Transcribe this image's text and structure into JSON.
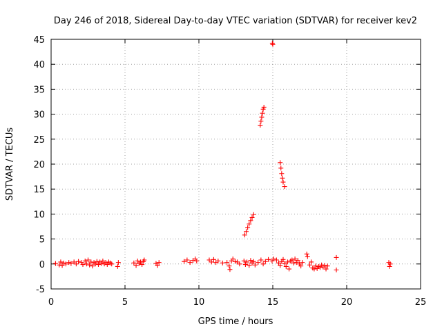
{
  "chart_data": {
    "type": "scatter",
    "title": "Day 246 of 2018, Sidereal Day-to-day VTEC variation (SDTVAR) for receiver kev2",
    "xlabel": "GPS time / hours",
    "ylabel": "SDTVAR / TECUs",
    "xlim": [
      0,
      25
    ],
    "ylim": [
      -5,
      45
    ],
    "xticks": [
      0,
      5,
      10,
      15,
      20,
      25
    ],
    "yticks": [
      -5,
      0,
      5,
      10,
      15,
      20,
      25,
      30,
      35,
      40,
      45
    ],
    "grid": true,
    "marker": "plus",
    "color": "#ff0000",
    "series": [
      {
        "name": "SDTVAR",
        "points": [
          [
            0.3,
            0.1
          ],
          [
            0.55,
            -0.2
          ],
          [
            0.65,
            0.4
          ],
          [
            0.75,
            -0.3
          ],
          [
            0.85,
            0.2
          ],
          [
            1.0,
            0.0
          ],
          [
            1.2,
            0.3
          ],
          [
            1.35,
            0.1
          ],
          [
            1.55,
            0.4
          ],
          [
            1.7,
            0.0
          ],
          [
            1.85,
            0.5
          ],
          [
            2.05,
            0.3
          ],
          [
            2.15,
            -0.1
          ],
          [
            2.3,
            0.6
          ],
          [
            2.4,
            0.0
          ],
          [
            2.5,
            0.8
          ],
          [
            2.6,
            -0.2
          ],
          [
            2.7,
            0.4
          ],
          [
            2.8,
            -0.4
          ],
          [
            2.9,
            0.3
          ],
          [
            3.0,
            0.0
          ],
          [
            3.1,
            0.5
          ],
          [
            3.2,
            -0.1
          ],
          [
            3.3,
            0.4
          ],
          [
            3.4,
            0.1
          ],
          [
            3.5,
            0.6
          ],
          [
            3.6,
            0.0
          ],
          [
            3.7,
            0.3
          ],
          [
            3.8,
            -0.1
          ],
          [
            3.9,
            0.4
          ],
          [
            4.0,
            0.2
          ],
          [
            4.1,
            0.0
          ],
          [
            4.5,
            -0.5
          ],
          [
            4.55,
            0.3
          ],
          [
            5.6,
            0.2
          ],
          [
            5.75,
            -0.3
          ],
          [
            5.85,
            0.6
          ],
          [
            5.95,
            0.1
          ],
          [
            6.05,
            0.4
          ],
          [
            6.15,
            -0.1
          ],
          [
            6.25,
            0.5
          ],
          [
            6.3,
            0.8
          ],
          [
            7.1,
            0.1
          ],
          [
            7.2,
            -0.3
          ],
          [
            7.3,
            0.3
          ],
          [
            9.0,
            0.5
          ],
          [
            9.2,
            0.8
          ],
          [
            9.4,
            0.3
          ],
          [
            9.6,
            0.7
          ],
          [
            9.75,
            1.0
          ],
          [
            9.85,
            0.6
          ],
          [
            10.7,
            0.8
          ],
          [
            10.85,
            0.4
          ],
          [
            11.0,
            0.9
          ],
          [
            11.15,
            0.3
          ],
          [
            11.3,
            0.6
          ],
          [
            11.6,
            0.2
          ],
          [
            11.9,
            0.3
          ],
          [
            12.05,
            -0.4
          ],
          [
            12.1,
            -1.1
          ],
          [
            12.2,
            0.6
          ],
          [
            12.3,
            1.0
          ],
          [
            12.45,
            0.5
          ],
          [
            12.6,
            0.4
          ],
          [
            12.75,
            0.0
          ],
          [
            13.05,
            0.6
          ],
          [
            13.15,
            -0.1
          ],
          [
            13.25,
            0.4
          ],
          [
            13.4,
            -0.3
          ],
          [
            13.5,
            0.7
          ],
          [
            13.6,
            0.2
          ],
          [
            13.7,
            0.5
          ],
          [
            13.8,
            -0.2
          ],
          [
            14.0,
            0.3
          ],
          [
            14.2,
            0.8
          ],
          [
            14.35,
            0.0
          ],
          [
            14.5,
            0.5
          ],
          [
            14.7,
            0.9
          ],
          [
            14.95,
            0.6
          ],
          [
            15.05,
            1.0
          ],
          [
            15.25,
            0.8
          ],
          [
            15.4,
            0.2
          ],
          [
            15.5,
            -0.3
          ],
          [
            15.6,
            0.5
          ],
          [
            15.7,
            0.9
          ],
          [
            15.8,
            0.1
          ],
          [
            15.9,
            -0.5
          ],
          [
            16.0,
            0.4
          ],
          [
            16.1,
            -1.0
          ],
          [
            16.2,
            0.6
          ],
          [
            16.3,
            0.8
          ],
          [
            16.4,
            0.2
          ],
          [
            16.5,
            1.0
          ],
          [
            16.6,
            0.3
          ],
          [
            16.7,
            0.7
          ],
          [
            16.8,
            0.0
          ],
          [
            16.9,
            -0.4
          ],
          [
            17.0,
            0.3
          ],
          [
            17.3,
            2.0
          ],
          [
            17.35,
            1.5
          ],
          [
            17.5,
            -0.2
          ],
          [
            17.6,
            0.4
          ],
          [
            17.7,
            -0.8
          ],
          [
            17.8,
            -1.0
          ],
          [
            17.9,
            -0.4
          ],
          [
            18.0,
            -0.9
          ],
          [
            18.1,
            -0.5
          ],
          [
            18.2,
            -0.7
          ],
          [
            18.3,
            -0.2
          ],
          [
            18.4,
            -0.6
          ],
          [
            18.5,
            -0.3
          ],
          [
            18.6,
            -1.0
          ],
          [
            18.7,
            -0.4
          ],
          [
            19.3,
            1.3
          ],
          [
            19.3,
            -1.2
          ],
          [
            22.85,
            0.3
          ],
          [
            22.9,
            -0.5
          ],
          [
            22.95,
            0.0
          ],
          [
            13.1,
            5.8
          ],
          [
            13.2,
            6.5
          ],
          [
            13.3,
            7.3
          ],
          [
            13.4,
            8.0
          ],
          [
            13.5,
            8.7
          ],
          [
            13.6,
            9.3
          ],
          [
            13.7,
            9.9
          ],
          [
            14.15,
            27.8
          ],
          [
            14.2,
            28.6
          ],
          [
            14.25,
            29.4
          ],
          [
            14.3,
            30.2
          ],
          [
            14.35,
            31.0
          ],
          [
            14.4,
            31.4
          ],
          [
            14.97,
            44.2
          ],
          [
            15.0,
            44.0
          ],
          [
            15.5,
            20.3
          ],
          [
            15.55,
            19.2
          ],
          [
            15.6,
            18.1
          ],
          [
            15.65,
            17.2
          ],
          [
            15.7,
            16.4
          ],
          [
            15.8,
            15.5
          ]
        ]
      }
    ]
  }
}
